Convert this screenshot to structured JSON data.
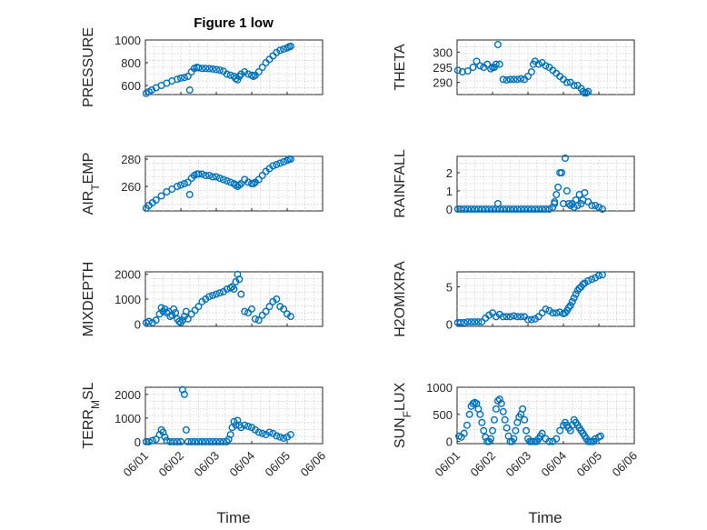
{
  "figure": {
    "title": "Figure 1 low",
    "xlabel": "Time",
    "x_ticks": [
      "06/01",
      "06/02",
      "06/03",
      "06/04",
      "06/05",
      "06/06"
    ],
    "marker_color": "#0072bd",
    "grid": "on",
    "minor_grid": "on"
  },
  "chart_data": [
    {
      "type": "scatter",
      "ylabel": "PRESSURE",
      "y_ticks": [
        600,
        800,
        1000
      ],
      "ylim": [
        520,
        1000
      ],
      "xlim": [
        0,
        5
      ],
      "series": [
        {
          "x": [
            0.02,
            0.1,
            0.18,
            0.3,
            0.45,
            0.6,
            0.75,
            0.9,
            1.0,
            1.1,
            1.2,
            1.25,
            1.3,
            1.38,
            1.45,
            1.5,
            1.6,
            1.7,
            1.8,
            1.9,
            2.0,
            2.1,
            2.2,
            2.3,
            2.4,
            2.5,
            2.55,
            2.6,
            2.65,
            2.7,
            2.8,
            2.9,
            3.0,
            3.05,
            3.1,
            3.2,
            3.3,
            3.4,
            3.5,
            3.6,
            3.7,
            3.8,
            3.9,
            4.0,
            4.05,
            4.1
          ],
          "y": [
            530,
            545,
            560,
            580,
            600,
            620,
            640,
            655,
            665,
            670,
            680,
            560,
            720,
            750,
            760,
            755,
            750,
            750,
            748,
            745,
            740,
            735,
            725,
            700,
            690,
            680,
            660,
            650,
            680,
            700,
            720,
            700,
            690,
            680,
            690,
            720,
            760,
            800,
            830,
            860,
            890,
            910,
            920,
            930,
            940,
            945
          ]
        }
      ]
    },
    {
      "type": "scatter",
      "ylabel": "THETA",
      "y_ticks": [
        290,
        295,
        300
      ],
      "ylim": [
        286,
        304
      ],
      "xlim": [
        0,
        5
      ],
      "series": [
        {
          "x": [
            0.02,
            0.15,
            0.3,
            0.45,
            0.55,
            0.65,
            0.75,
            0.85,
            0.95,
            1.0,
            1.05,
            1.1,
            1.15,
            1.2,
            1.3,
            1.4,
            1.5,
            1.6,
            1.7,
            1.8,
            1.9,
            2.0,
            2.1,
            2.15,
            2.2,
            2.3,
            2.4,
            2.5,
            2.6,
            2.7,
            2.8,
            2.9,
            3.0,
            3.1,
            3.2,
            3.3,
            3.4,
            3.5,
            3.55,
            3.6,
            3.65,
            3.7
          ],
          "y": [
            294,
            293.5,
            293.8,
            295,
            297,
            295.5,
            295,
            296,
            294.5,
            295,
            295,
            296,
            302.5,
            296,
            291,
            290.8,
            291,
            291,
            291,
            291.2,
            291,
            292,
            293.5,
            296,
            297,
            296,
            296.5,
            295.5,
            295,
            294,
            293,
            292,
            291,
            290,
            290,
            289,
            289,
            288,
            287,
            286.5,
            286.5,
            287
          ]
        }
      ]
    },
    {
      "type": "scatter",
      "ylabel": "AIR_TEMP",
      "y_ticks": [
        260,
        280
      ],
      "ylim": [
        242,
        282
      ],
      "xlim": [
        0,
        5
      ],
      "series": [
        {
          "x": [
            0.02,
            0.1,
            0.2,
            0.3,
            0.45,
            0.6,
            0.75,
            0.9,
            1.0,
            1.1,
            1.2,
            1.25,
            1.3,
            1.38,
            1.45,
            1.5,
            1.6,
            1.7,
            1.8,
            1.9,
            2.0,
            2.1,
            2.2,
            2.3,
            2.4,
            2.5,
            2.55,
            2.6,
            2.65,
            2.7,
            2.8,
            2.9,
            3.0,
            3.05,
            3.1,
            3.2,
            3.3,
            3.4,
            3.5,
            3.6,
            3.7,
            3.8,
            3.9,
            4.0,
            4.05,
            4.1
          ],
          "y": [
            244,
            246,
            248,
            250,
            253,
            256,
            258,
            260,
            261,
            262,
            263,
            254,
            266,
            268,
            269,
            269,
            269,
            268,
            268,
            267,
            267,
            266,
            265,
            264,
            263,
            262,
            261,
            260,
            261,
            262,
            265,
            263,
            262,
            262,
            263,
            265,
            268,
            271,
            273,
            275,
            276,
            277,
            278,
            279,
            280,
            280
          ]
        }
      ]
    },
    {
      "type": "scatter",
      "ylabel": "RAINFALL",
      "y_ticks": [
        0,
        1,
        2
      ],
      "ylim": [
        -0.1,
        2.9
      ],
      "xlim": [
        0,
        5
      ],
      "series": [
        {
          "x": [
            0.02,
            0.1,
            0.2,
            0.3,
            0.4,
            0.5,
            0.6,
            0.7,
            0.8,
            0.9,
            1.0,
            1.1,
            1.2,
            1.3,
            1.4,
            1.5,
            1.6,
            1.7,
            1.8,
            1.9,
            2.0,
            2.1,
            2.2,
            2.3,
            2.4,
            2.5,
            2.6,
            2.7,
            2.75,
            2.8,
            2.85,
            2.9,
            2.95,
            3.0,
            3.05,
            3.1,
            3.15,
            3.2,
            3.25,
            3.3,
            3.35,
            3.4,
            3.45,
            3.5,
            3.55,
            3.6,
            3.7,
            3.8,
            3.9,
            4.0,
            4.1,
            1.15,
            2.75
          ],
          "y": [
            0,
            0,
            0,
            0,
            0,
            0,
            0,
            0,
            0,
            0,
            0,
            0,
            0,
            0,
            0,
            0,
            0,
            0,
            0,
            0,
            0,
            0,
            0,
            0,
            0,
            0,
            0,
            0.1,
            0.3,
            0.8,
            1.2,
            2.0,
            2.0,
            0.3,
            2.8,
            1.0,
            0.3,
            0.2,
            0.3,
            0.1,
            0.5,
            0.2,
            0.8,
            0.3,
            0.5,
            0.9,
            0.4,
            0.2,
            0.2,
            0.1,
            0,
            0.3,
            0.4
          ]
        }
      ]
    },
    {
      "type": "scatter",
      "ylabel": "MIXDEPTH",
      "y_ticks": [
        0,
        1000,
        2000
      ],
      "ylim": [
        -100,
        2100
      ],
      "xlim": [
        0,
        5
      ],
      "series": [
        {
          "x": [
            0.02,
            0.1,
            0.2,
            0.3,
            0.4,
            0.45,
            0.5,
            0.55,
            0.6,
            0.65,
            0.7,
            0.75,
            0.8,
            0.85,
            0.9,
            0.95,
            1.0,
            1.05,
            1.1,
            1.15,
            1.2,
            1.3,
            1.4,
            1.5,
            1.6,
            1.7,
            1.8,
            1.9,
            2.0,
            2.1,
            2.2,
            2.3,
            2.4,
            2.45,
            2.5,
            2.55,
            2.6,
            2.65,
            2.7,
            2.8,
            2.9,
            3.0,
            3.1,
            3.2,
            3.3,
            3.4,
            3.5,
            3.6,
            3.7,
            3.8,
            3.9,
            4.0,
            4.1
          ],
          "y": [
            50,
            100,
            50,
            150,
            400,
            650,
            500,
            600,
            450,
            500,
            300,
            350,
            600,
            450,
            200,
            100,
            50,
            150,
            300,
            500,
            200,
            400,
            550,
            700,
            900,
            1000,
            1100,
            1150,
            1200,
            1250,
            1300,
            1400,
            1450,
            1500,
            1400,
            1700,
            2000,
            1800,
            1200,
            500,
            450,
            600,
            200,
            150,
            350,
            500,
            700,
            900,
            1000,
            700,
            600,
            400,
            300
          ]
        }
      ]
    },
    {
      "type": "scatter",
      "ylabel": "H2OMIXRA",
      "y_ticks": [
        0,
        5
      ],
      "ylim": [
        -0.3,
        7
      ],
      "xlim": [
        0,
        5
      ],
      "series": [
        {
          "x": [
            0.02,
            0.1,
            0.2,
            0.3,
            0.4,
            0.5,
            0.6,
            0.7,
            0.8,
            0.9,
            1.0,
            1.1,
            1.2,
            1.3,
            1.4,
            1.5,
            1.6,
            1.7,
            1.8,
            1.9,
            2.0,
            2.1,
            2.2,
            2.3,
            2.4,
            2.5,
            2.6,
            2.7,
            2.8,
            2.9,
            3.0,
            3.05,
            3.1,
            3.15,
            3.2,
            3.25,
            3.3,
            3.35,
            3.4,
            3.45,
            3.5,
            3.55,
            3.6,
            3.7,
            3.8,
            3.9,
            4.0,
            4.1
          ],
          "y": [
            0.2,
            0.2,
            0.2,
            0.3,
            0.3,
            0.3,
            0.3,
            0.3,
            0.8,
            1.2,
            1.5,
            1.0,
            1.3,
            1.0,
            1.0,
            1.0,
            1.1,
            1.0,
            1.0,
            1.0,
            0.6,
            0.6,
            0.7,
            1.0,
            1.5,
            2.0,
            1.8,
            1.5,
            1.5,
            1.6,
            1.4,
            1.5,
            1.8,
            2.2,
            2.5,
            3.0,
            3.5,
            4.0,
            4.5,
            4.8,
            5.0,
            5.3,
            5.5,
            5.8,
            6.0,
            6.2,
            6.5,
            6.6
          ]
        }
      ]
    },
    {
      "type": "scatter",
      "ylabel": "TERR_MSL",
      "y_ticks": [
        0,
        1000,
        2000
      ],
      "ylim": [
        -80,
        2300
      ],
      "xlim": [
        0,
        5
      ],
      "series": [
        {
          "x": [
            0.02,
            0.1,
            0.2,
            0.3,
            0.4,
            0.45,
            0.5,
            0.55,
            0.6,
            0.7,
            0.8,
            0.9,
            1.0,
            1.05,
            1.1,
            1.15,
            1.2,
            1.3,
            1.4,
            1.5,
            1.6,
            1.7,
            1.8,
            1.9,
            2.0,
            2.1,
            2.2,
            2.3,
            2.35,
            2.4,
            2.45,
            2.5,
            2.55,
            2.6,
            2.65,
            2.7,
            2.8,
            2.9,
            3.0,
            3.1,
            3.2,
            3.3,
            3.4,
            3.5,
            3.6,
            3.7,
            3.8,
            3.9,
            4.0,
            4.1
          ],
          "y": [
            0,
            0,
            50,
            100,
            300,
            500,
            400,
            200,
            50,
            0,
            0,
            0,
            0,
            2200,
            2000,
            500,
            0,
            0,
            0,
            0,
            0,
            0,
            0,
            0,
            0,
            0,
            0,
            0,
            100,
            300,
            600,
            850,
            700,
            900,
            700,
            600,
            700,
            650,
            600,
            500,
            400,
            350,
            300,
            400,
            350,
            250,
            200,
            150,
            200,
            300
          ]
        }
      ]
    },
    {
      "type": "scatter",
      "ylabel": "SUN_FLUX",
      "y_ticks": [
        0,
        500,
        1000
      ],
      "ylim": [
        -40,
        1000
      ],
      "xlim": [
        0,
        5
      ],
      "series": [
        {
          "x": [
            0.05,
            0.12,
            0.2,
            0.28,
            0.35,
            0.4,
            0.45,
            0.5,
            0.55,
            0.6,
            0.65,
            0.7,
            0.75,
            0.8,
            0.85,
            0.9,
            0.95,
            1.0,
            1.05,
            1.1,
            1.15,
            1.2,
            1.25,
            1.3,
            1.35,
            1.4,
            1.45,
            1.5,
            1.55,
            1.6,
            1.65,
            1.7,
            1.75,
            1.8,
            1.85,
            1.9,
            1.95,
            2.0,
            2.05,
            2.1,
            2.15,
            2.2,
            2.25,
            2.3,
            2.35,
            2.4,
            2.5,
            2.6,
            2.7,
            2.8,
            2.9,
            3.0,
            3.05,
            3.1,
            3.15,
            3.2,
            3.25,
            3.3,
            3.35,
            3.4,
            3.45,
            3.5,
            3.55,
            3.6,
            3.65,
            3.7,
            3.75,
            3.8,
            3.85,
            3.9,
            4.0,
            4.05
          ],
          "y": [
            100,
            80,
            150,
            300,
            500,
            650,
            700,
            720,
            700,
            600,
            500,
            350,
            200,
            80,
            0,
            0,
            50,
            200,
            400,
            600,
            750,
            780,
            700,
            550,
            400,
            250,
            100,
            0,
            0,
            50,
            200,
            350,
            450,
            500,
            600,
            400,
            200,
            50,
            0,
            0,
            0,
            0,
            0,
            50,
            100,
            150,
            50,
            0,
            0,
            50,
            200,
            300,
            350,
            300,
            250,
            200,
            300,
            400,
            350,
            300,
            250,
            200,
            150,
            100,
            50,
            0,
            0,
            0,
            0,
            50,
            80,
            100
          ]
        }
      ]
    }
  ]
}
